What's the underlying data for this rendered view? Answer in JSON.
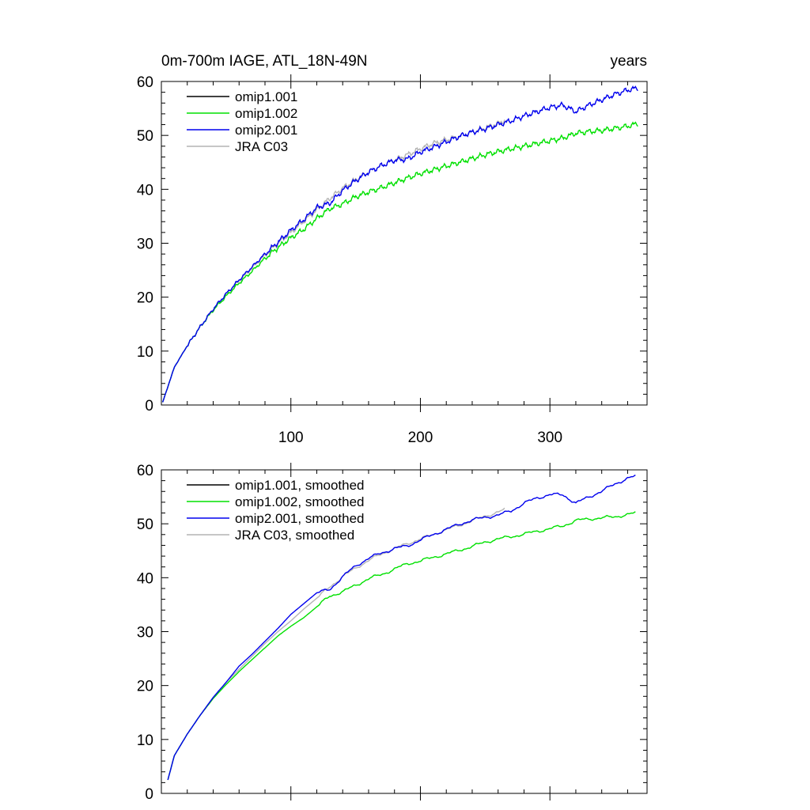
{
  "chart_data": [
    {
      "type": "line",
      "title_left": "0m-700m IAGE, ATL_18N-49N",
      "title_right": "years",
      "xlabel": "",
      "ylabel": "",
      "xlim": [
        0,
        375
      ],
      "ylim": [
        0,
        60
      ],
      "x_ticks": [
        100,
        200,
        300
      ],
      "y_ticks": [
        0,
        10,
        20,
        30,
        40,
        50,
        60
      ],
      "legend_position": "top-left",
      "series": [
        {
          "name": "omip1.001",
          "color": "#000000",
          "x": [],
          "y": []
        },
        {
          "name": "omip1.002",
          "color": "#00e000",
          "smooth": false,
          "x": [
            1,
            10,
            20,
            30,
            40,
            50,
            60,
            70,
            80,
            90,
            100,
            110,
            120,
            130,
            140,
            150,
            160,
            170,
            180,
            190,
            200,
            210,
            220,
            230,
            240,
            250,
            260,
            270,
            280,
            290,
            300,
            310,
            320,
            330,
            340,
            350,
            360,
            368
          ],
          "y": [
            0.5,
            7,
            11,
            14.5,
            17.6,
            20.2,
            22.6,
            24.8,
            27.2,
            29.2,
            31,
            32.6,
            34.6,
            36.4,
            37.3,
            38.6,
            39.5,
            40.3,
            41.2,
            42.1,
            42.9,
            43.6,
            44.3,
            45.0,
            45.7,
            46.4,
            47.0,
            47.5,
            48.0,
            48.5,
            49.0,
            49.5,
            50.4,
            50.7,
            50.9,
            51.3,
            51.7,
            52.2
          ]
        },
        {
          "name": "omip2.001",
          "color": "#0000ee",
          "smooth": false,
          "x": [
            1,
            10,
            20,
            30,
            40,
            50,
            60,
            70,
            80,
            90,
            100,
            110,
            120,
            130,
            140,
            150,
            160,
            170,
            180,
            190,
            200,
            210,
            220,
            230,
            240,
            250,
            260,
            270,
            280,
            290,
            300,
            310,
            320,
            330,
            340,
            350,
            360,
            368
          ],
          "y": [
            0.5,
            7,
            11,
            14.5,
            17.8,
            20.6,
            23.2,
            25.6,
            28,
            30.2,
            32.4,
            34.4,
            36.6,
            37.4,
            39.8,
            41.6,
            43.2,
            44.4,
            45.4,
            45.6,
            46.9,
            47.8,
            48.8,
            49.8,
            50.6,
            51.2,
            52.0,
            52.7,
            53.6,
            54.4,
            55.2,
            55.6,
            54.4,
            55.6,
            56.6,
            57.6,
            58.4,
            58.8
          ]
        },
        {
          "name": "JRA C03",
          "color": "#b4b4b4",
          "smooth": false,
          "x": [
            1,
            10,
            20,
            30,
            40,
            50,
            60,
            70,
            80,
            90,
            100,
            110,
            120,
            130,
            140,
            150,
            160,
            170,
            180,
            190,
            200,
            210,
            220,
            230,
            240,
            250,
            260,
            265
          ],
          "y": [
            0.5,
            7,
            11,
            14.5,
            17.8,
            20.6,
            23.0,
            25.4,
            27.8,
            30.0,
            32.0,
            34.1,
            36.2,
            38.3,
            40.2,
            41.8,
            43.2,
            44.4,
            45.4,
            46.4,
            47.5,
            48.5,
            49.2,
            49.8,
            50.6,
            51.4,
            52.2,
            52.8
          ]
        }
      ]
    },
    {
      "type": "line",
      "title_left": "",
      "title_right": "",
      "xlabel": "",
      "ylabel": "",
      "xlim": [
        0,
        375
      ],
      "ylim": [
        0,
        60
      ],
      "x_ticks": [
        100,
        200,
        300
      ],
      "y_ticks": [
        0,
        10,
        20,
        30,
        40,
        50,
        60
      ],
      "show_x_tick_labels": false,
      "legend_position": "top-left",
      "series": [
        {
          "name": "omip1.001, smoothed",
          "color": "#000000",
          "x": [],
          "y": []
        },
        {
          "name": "omip1.002, smoothed",
          "color": "#00e000",
          "smooth": true,
          "x": [
            5,
            10,
            20,
            30,
            40,
            50,
            60,
            70,
            80,
            90,
            100,
            110,
            120,
            130,
            140,
            150,
            160,
            170,
            180,
            190,
            200,
            210,
            220,
            230,
            240,
            250,
            260,
            270,
            280,
            290,
            300,
            310,
            320,
            330,
            340,
            350,
            360,
            366
          ],
          "y": [
            2.5,
            7,
            11,
            14.5,
            17.6,
            20.2,
            22.6,
            24.8,
            27.0,
            29.2,
            31.0,
            32.6,
            34.6,
            36.6,
            37.4,
            38.6,
            39.8,
            40.6,
            41.6,
            42.6,
            43.1,
            43.8,
            44.4,
            45.1,
            45.8,
            46.6,
            47.2,
            47.6,
            48.1,
            48.6,
            49.1,
            49.6,
            50.6,
            50.9,
            51.1,
            51.3,
            51.7,
            52.0
          ]
        },
        {
          "name": "omip2.001, smoothed",
          "color": "#0000ee",
          "smooth": true,
          "x": [
            5,
            10,
            20,
            30,
            40,
            50,
            60,
            70,
            80,
            90,
            100,
            110,
            120,
            130,
            140,
            150,
            160,
            170,
            180,
            190,
            200,
            210,
            220,
            230,
            240,
            250,
            260,
            270,
            280,
            290,
            300,
            310,
            320,
            330,
            340,
            350,
            360,
            366
          ],
          "y": [
            2.5,
            7,
            11,
            14.5,
            17.8,
            20.6,
            23.6,
            25.8,
            28.2,
            30.6,
            33.2,
            35.2,
            37.2,
            37.8,
            40.2,
            42.2,
            43.6,
            44.6,
            45.4,
            45.9,
            47.0,
            48.0,
            49.0,
            49.9,
            50.7,
            51.2,
            51.6,
            52.4,
            53.8,
            54.8,
            55.4,
            55.4,
            53.8,
            55.0,
            56.0,
            57.4,
            58.4,
            58.8
          ]
        },
        {
          "name": "JRA C03, smoothed",
          "color": "#b4b4b4",
          "smooth": true,
          "x": [
            5,
            10,
            20,
            30,
            40,
            50,
            60,
            70,
            80,
            90,
            100,
            110,
            120,
            130,
            140,
            150,
            160,
            170,
            180,
            190,
            200,
            210,
            220,
            230,
            240,
            250,
            260,
            265
          ],
          "y": [
            2.5,
            7,
            11,
            14.5,
            17.8,
            20.6,
            23.0,
            25.4,
            27.8,
            30.0,
            32.0,
            34.2,
            36.2,
            38.3,
            40.2,
            41.8,
            43.2,
            44.4,
            45.4,
            46.3,
            47.2,
            48.0,
            48.9,
            49.7,
            50.6,
            51.4,
            52.2,
            52.6
          ]
        }
      ]
    }
  ]
}
